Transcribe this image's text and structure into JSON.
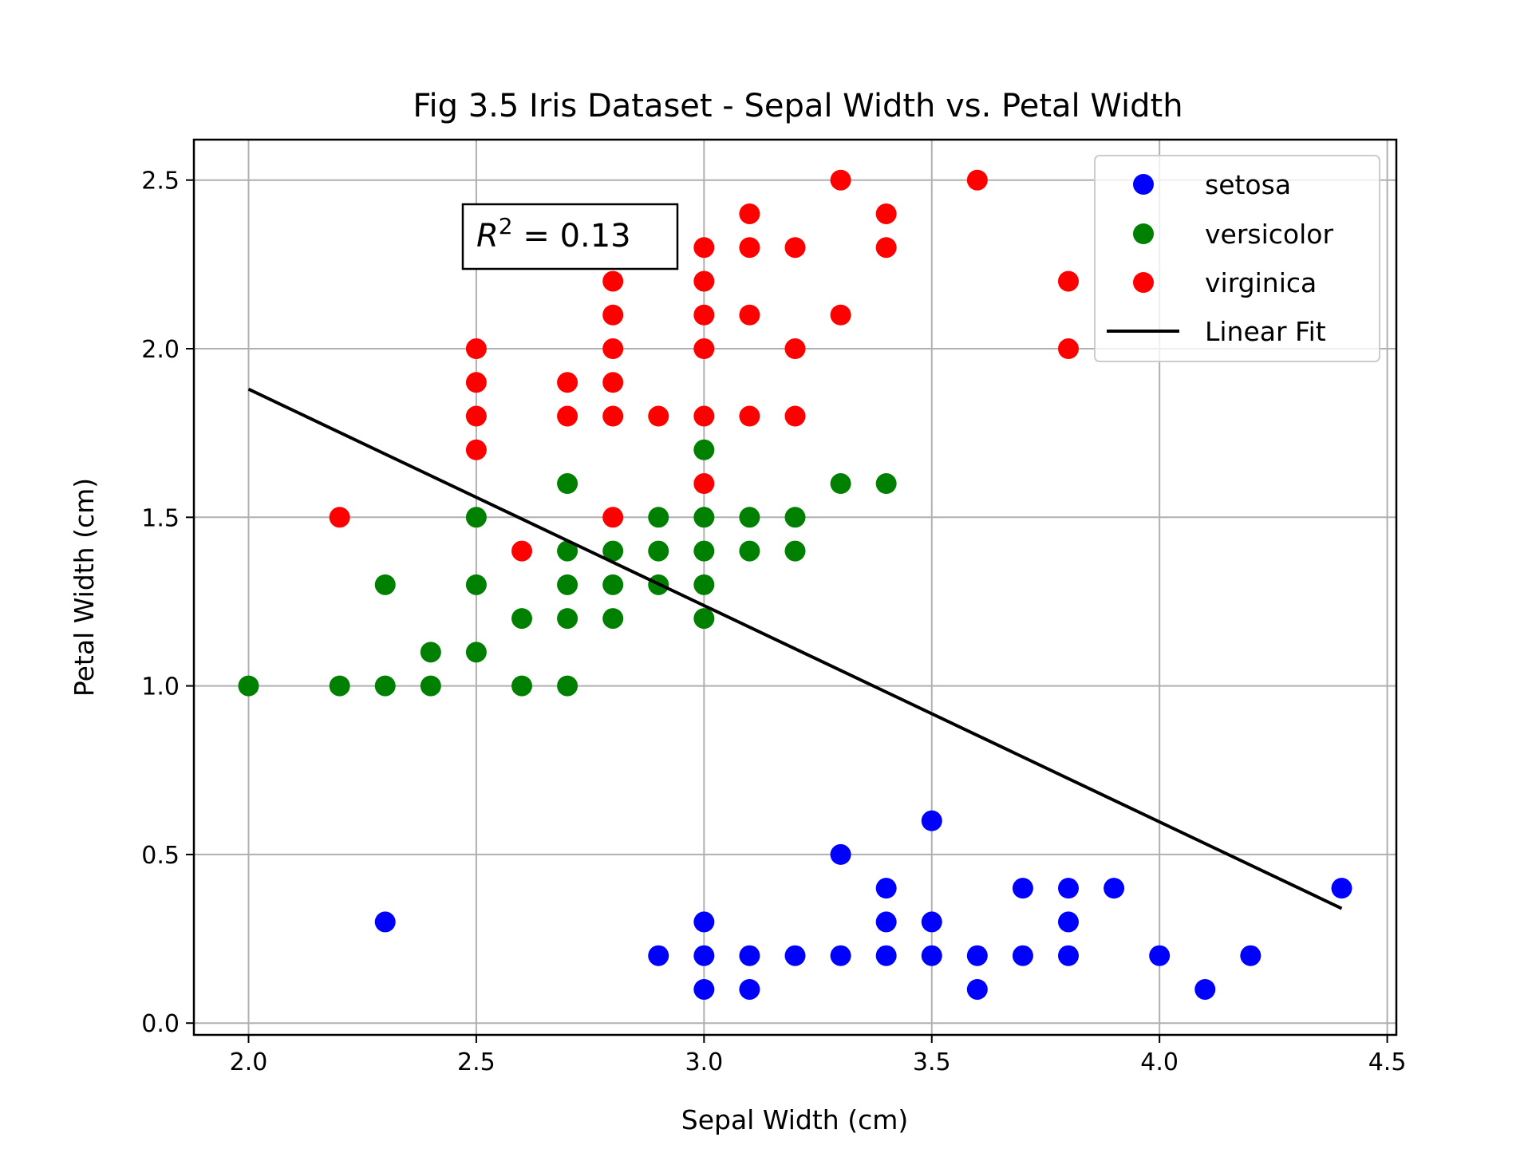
{
  "chart_data": {
    "type": "scatter",
    "title": "Fig 3.5 Iris Dataset - Sepal Width vs. Petal Width",
    "xlabel": "Sepal Width (cm)",
    "ylabel": "Petal Width (cm)",
    "xlim": [
      1.88,
      4.52
    ],
    "ylim": [
      -0.035,
      2.62
    ],
    "xticks": [
      "2.0",
      "2.5",
      "3.0",
      "3.5",
      "4.0",
      "4.5"
    ],
    "yticks": [
      "0.0",
      "0.5",
      "1.0",
      "1.5",
      "2.0",
      "2.5"
    ],
    "grid": true,
    "legend_position": "top-right",
    "annotation": {
      "r": "R",
      "sup": "2",
      "rest": " = 0.13"
    },
    "series": [
      {
        "name": "setosa",
        "color": "#0000ff",
        "points": [
          [
            2.3,
            0.3
          ],
          [
            2.9,
            0.2
          ],
          [
            3.0,
            0.3
          ],
          [
            3.0,
            0.2
          ],
          [
            3.0,
            0.1
          ],
          [
            3.1,
            0.2
          ],
          [
            3.1,
            0.1
          ],
          [
            3.2,
            0.2
          ],
          [
            3.3,
            0.5
          ],
          [
            3.3,
            0.2
          ],
          [
            3.4,
            0.4
          ],
          [
            3.4,
            0.3
          ],
          [
            3.4,
            0.2
          ],
          [
            3.5,
            0.6
          ],
          [
            3.5,
            0.3
          ],
          [
            3.5,
            0.2
          ],
          [
            3.6,
            0.2
          ],
          [
            3.6,
            0.1
          ],
          [
            3.7,
            0.4
          ],
          [
            3.7,
            0.2
          ],
          [
            3.8,
            0.4
          ],
          [
            3.8,
            0.3
          ],
          [
            3.8,
            0.2
          ],
          [
            3.9,
            0.4
          ],
          [
            4.0,
            0.2
          ],
          [
            4.1,
            0.1
          ],
          [
            4.2,
            0.2
          ],
          [
            4.4,
            0.4
          ]
        ]
      },
      {
        "name": "versicolor",
        "color": "#008000",
        "points": [
          [
            2.0,
            1.0
          ],
          [
            2.2,
            1.0
          ],
          [
            2.3,
            1.3
          ],
          [
            2.3,
            1.0
          ],
          [
            2.4,
            1.1
          ],
          [
            2.4,
            1.0
          ],
          [
            2.5,
            1.5
          ],
          [
            2.5,
            1.3
          ],
          [
            2.5,
            1.1
          ],
          [
            2.6,
            1.2
          ],
          [
            2.6,
            1.0
          ],
          [
            2.7,
            1.6
          ],
          [
            2.7,
            1.4
          ],
          [
            2.7,
            1.3
          ],
          [
            2.7,
            1.2
          ],
          [
            2.7,
            1.0
          ],
          [
            2.8,
            1.4
          ],
          [
            2.8,
            1.3
          ],
          [
            2.8,
            1.2
          ],
          [
            2.9,
            1.5
          ],
          [
            2.9,
            1.4
          ],
          [
            2.9,
            1.3
          ],
          [
            3.0,
            1.7
          ],
          [
            3.0,
            1.5
          ],
          [
            3.0,
            1.4
          ],
          [
            3.0,
            1.3
          ],
          [
            3.0,
            1.2
          ],
          [
            3.1,
            1.5
          ],
          [
            3.1,
            1.4
          ],
          [
            3.2,
            1.5
          ],
          [
            3.2,
            1.4
          ],
          [
            3.3,
            1.6
          ],
          [
            3.4,
            1.6
          ]
        ]
      },
      {
        "name": "virginica",
        "color": "#ff0000",
        "points": [
          [
            2.2,
            1.5
          ],
          [
            2.5,
            2.0
          ],
          [
            2.5,
            1.9
          ],
          [
            2.5,
            1.8
          ],
          [
            2.5,
            1.7
          ],
          [
            2.6,
            1.4
          ],
          [
            2.7,
            1.9
          ],
          [
            2.7,
            1.8
          ],
          [
            2.8,
            2.2
          ],
          [
            2.8,
            2.1
          ],
          [
            2.8,
            2.0
          ],
          [
            2.8,
            1.9
          ],
          [
            2.8,
            1.8
          ],
          [
            2.8,
            1.5
          ],
          [
            2.9,
            1.8
          ],
          [
            3.0,
            2.3
          ],
          [
            3.0,
            2.2
          ],
          [
            3.0,
            2.1
          ],
          [
            3.0,
            2.0
          ],
          [
            3.0,
            1.8
          ],
          [
            3.0,
            1.6
          ],
          [
            3.1,
            2.4
          ],
          [
            3.1,
            2.3
          ],
          [
            3.1,
            2.1
          ],
          [
            3.1,
            1.8
          ],
          [
            3.2,
            2.3
          ],
          [
            3.2,
            2.0
          ],
          [
            3.2,
            1.8
          ],
          [
            3.3,
            2.5
          ],
          [
            3.3,
            2.1
          ],
          [
            3.4,
            2.4
          ],
          [
            3.4,
            2.3
          ],
          [
            3.6,
            2.5
          ],
          [
            3.8,
            2.2
          ],
          [
            3.8,
            2.0
          ]
        ]
      }
    ],
    "fit_line": {
      "name": "Linear Fit",
      "color": "#000000",
      "x": [
        2.0,
        4.4
      ],
      "y": [
        1.88,
        0.34
      ]
    }
  }
}
